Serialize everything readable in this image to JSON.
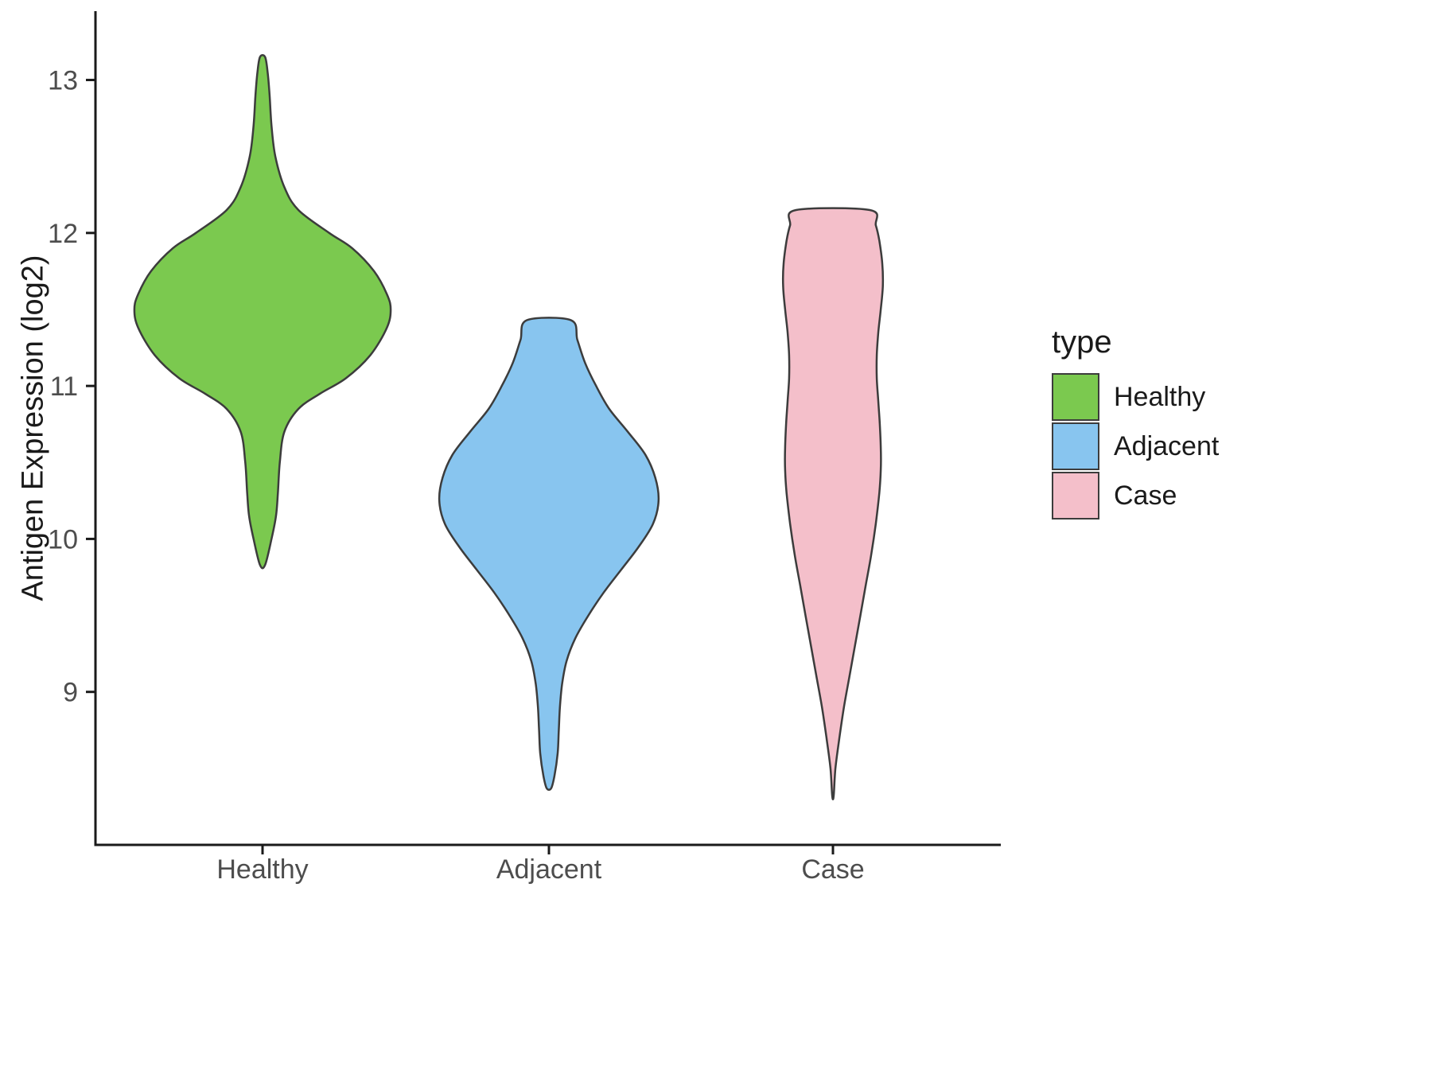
{
  "chart_data": {
    "type": "violin",
    "title": "",
    "xlabel": "",
    "ylabel": "Antigen Expression (log2)",
    "categories": [
      "Healthy",
      "Adjacent",
      "Case"
    ],
    "ylim": [
      8.0,
      13.45
    ],
    "yticks": [
      9,
      10,
      11,
      12,
      13
    ],
    "grid": false,
    "axis_color": "#1a1a1a",
    "tick_label_color": "#4d4d4d",
    "outline_color": "#3c3c3c",
    "legend": {
      "title": "type",
      "position": "right",
      "entries": [
        {
          "label": "Healthy",
          "color": "#7bc94f"
        },
        {
          "label": "Adjacent",
          "color": "#88c5ef"
        },
        {
          "label": "Case",
          "color": "#f4bfca"
        }
      ]
    },
    "series": [
      {
        "name": "Healthy",
        "color": "#7bc94f",
        "max_halfwidth": 0.45,
        "y_range": [
          9.83,
          13.15
        ],
        "profile": [
          [
            13.15,
            0.02
          ],
          [
            13.05,
            0.04
          ],
          [
            12.9,
            0.055
          ],
          [
            12.7,
            0.07
          ],
          [
            12.5,
            0.1
          ],
          [
            12.3,
            0.17
          ],
          [
            12.15,
            0.28
          ],
          [
            12.0,
            0.52
          ],
          [
            11.9,
            0.7
          ],
          [
            11.75,
            0.87
          ],
          [
            11.6,
            0.97
          ],
          [
            11.5,
            1.0
          ],
          [
            11.38,
            0.97
          ],
          [
            11.2,
            0.84
          ],
          [
            11.05,
            0.65
          ],
          [
            10.95,
            0.45
          ],
          [
            10.85,
            0.28
          ],
          [
            10.7,
            0.17
          ],
          [
            10.5,
            0.135
          ],
          [
            10.3,
            0.12
          ],
          [
            10.15,
            0.105
          ],
          [
            10.0,
            0.07
          ],
          [
            9.83,
            0.02
          ]
        ]
      },
      {
        "name": "Adjacent",
        "color": "#88c5ef",
        "max_halfwidth": 0.385,
        "y_range": [
          8.37,
          11.43
        ],
        "profile": [
          [
            11.43,
            0.2
          ],
          [
            11.3,
            0.26
          ],
          [
            11.15,
            0.33
          ],
          [
            11.0,
            0.43
          ],
          [
            10.85,
            0.55
          ],
          [
            10.7,
            0.72
          ],
          [
            10.55,
            0.88
          ],
          [
            10.4,
            0.97
          ],
          [
            10.25,
            1.0
          ],
          [
            10.1,
            0.95
          ],
          [
            9.95,
            0.82
          ],
          [
            9.8,
            0.66
          ],
          [
            9.65,
            0.5
          ],
          [
            9.5,
            0.36
          ],
          [
            9.35,
            0.24
          ],
          [
            9.2,
            0.16
          ],
          [
            9.05,
            0.12
          ],
          [
            8.9,
            0.1
          ],
          [
            8.75,
            0.09
          ],
          [
            8.6,
            0.08
          ],
          [
            8.45,
            0.05
          ],
          [
            8.37,
            0.02
          ]
        ]
      },
      {
        "name": "Case",
        "color": "#f4bfca",
        "max_halfwidth": 0.175,
        "y_range": [
          8.32,
          12.15
        ],
        "profile": [
          [
            12.15,
            0.74
          ],
          [
            12.05,
            0.86
          ],
          [
            11.95,
            0.93
          ],
          [
            11.8,
            0.99
          ],
          [
            11.65,
            1.0
          ],
          [
            11.5,
            0.96
          ],
          [
            11.35,
            0.91
          ],
          [
            11.2,
            0.88
          ],
          [
            11.05,
            0.88
          ],
          [
            10.9,
            0.91
          ],
          [
            10.75,
            0.94
          ],
          [
            10.6,
            0.96
          ],
          [
            10.45,
            0.96
          ],
          [
            10.3,
            0.93
          ],
          [
            10.1,
            0.86
          ],
          [
            9.9,
            0.77
          ],
          [
            9.7,
            0.66
          ],
          [
            9.5,
            0.55
          ],
          [
            9.3,
            0.44
          ],
          [
            9.1,
            0.33
          ],
          [
            8.9,
            0.22
          ],
          [
            8.7,
            0.13
          ],
          [
            8.5,
            0.05
          ],
          [
            8.32,
            0.015
          ]
        ]
      }
    ]
  }
}
